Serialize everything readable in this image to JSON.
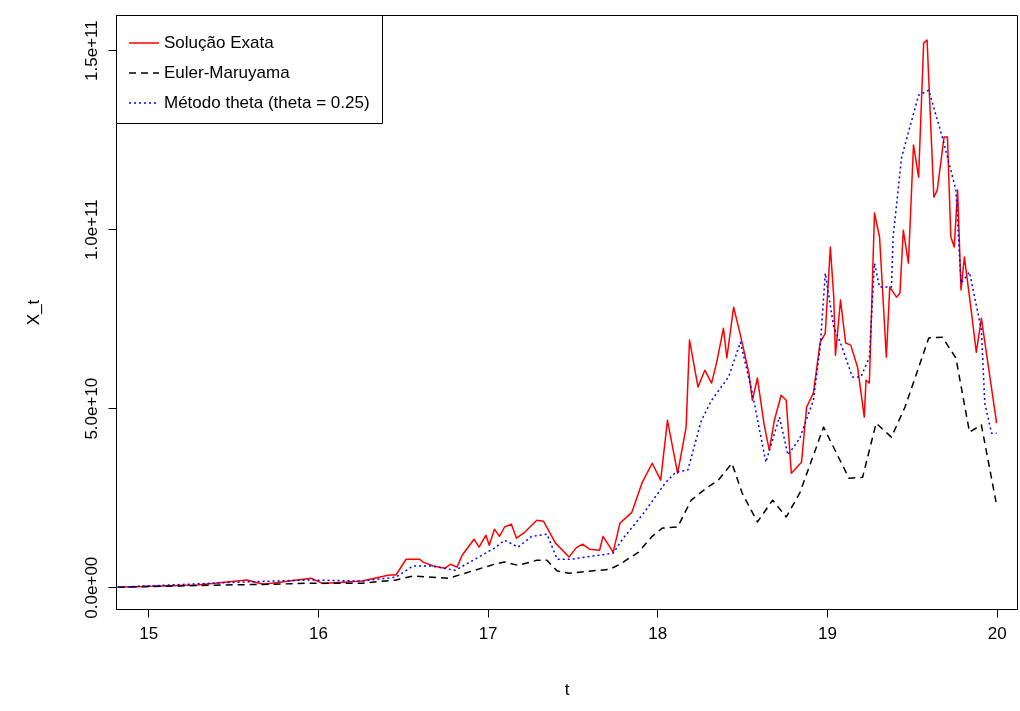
{
  "chart_data": {
    "type": "line",
    "xlabel": "t",
    "ylabel": "X_t",
    "xlim": [
      14.81,
      20.12
    ],
    "xticks": [
      15,
      16,
      17,
      18,
      19,
      20
    ],
    "ylim": [
      -6100000000.0,
      159800000000.0
    ],
    "yticks": [
      {
        "value": 0,
        "label": "0.0e+00"
      },
      {
        "value": 50000000000.0,
        "label": "5.0e+10"
      },
      {
        "value": 100000000000.0,
        "label": "1.0e+11"
      },
      {
        "value": 150000000000.0,
        "label": "1.5e+11"
      }
    ],
    "grid": false,
    "legend": "top left",
    "marker": "none",
    "series": [
      {
        "name": "Solução Exata",
        "color": "#ff0000",
        "line_style": "solid",
        "x": [
          14.82,
          15.29,
          15.58,
          15.68,
          15.96,
          16.03,
          16.26,
          16.42,
          16.46,
          16.52,
          16.6,
          16.62,
          16.68,
          16.75,
          16.78,
          16.82,
          16.85,
          16.92,
          16.95,
          16.99,
          17.01,
          17.04,
          17.07,
          17.1,
          17.14,
          17.17,
          17.22,
          17.29,
          17.33,
          17.4,
          17.48,
          17.52,
          17.56,
          17.6,
          17.66,
          17.68,
          17.74,
          17.78,
          17.85,
          17.91,
          17.97,
          18.02,
          18.06,
          18.12,
          18.17,
          18.19,
          18.24,
          18.28,
          18.32,
          18.35,
          18.39,
          18.41,
          18.45,
          18.49,
          18.54,
          18.56,
          18.59,
          18.63,
          18.66,
          18.69,
          18.73,
          18.76,
          18.79,
          18.85,
          18.88,
          18.92,
          18.96,
          18.99,
          19.02,
          19.04,
          19.05,
          19.08,
          19.11,
          19.14,
          19.18,
          19.22,
          19.23,
          19.25,
          19.28,
          19.31,
          19.35,
          19.37,
          19.41,
          19.43,
          19.45,
          19.48,
          19.51,
          19.54,
          19.57,
          19.59,
          19.63,
          19.65,
          19.69,
          19.71,
          19.73,
          19.75,
          19.77,
          19.79,
          19.81,
          19.85,
          19.88,
          19.91,
          19.92,
          20.0
        ],
        "values": [
          0,
          600000000.0,
          2000000000.0,
          800000000.0,
          2500000000.0,
          1000000000.0,
          1700000000.0,
          3400000000.0,
          3400000000.0,
          7800000000.0,
          7800000000.0,
          7000000000.0,
          5900000000.0,
          5300000000.0,
          6400000000.0,
          5600000000.0,
          8900000000.0,
          13400000000.0,
          11200000000.0,
          14500000000.0,
          11700000000.0,
          16200000000.0,
          14200000000.0,
          16800000000.0,
          17600000000.0,
          13700000000.0,
          15400000000.0,
          18700000000.0,
          18400000000.0,
          12300000000.0,
          8400000000.0,
          10900000000.0,
          12000000000.0,
          10600000000.0,
          10300000000.0,
          14200000000.0,
          9800000000.0,
          17900000000.0,
          20900000000.0,
          29100000000.0,
          34600000000.0,
          29900000000.0,
          46600000000.0,
          31800000000.0,
          44700000000.0,
          69000000000.0,
          55900000000.0,
          60600000000.0,
          57000000000.0,
          62800000000.0,
          72300000000.0,
          64000000000.0,
          78200000000.0,
          70400000000.0,
          59800000000.0,
          52200000000.0,
          58400000000.0,
          45300000000.0,
          38300000000.0,
          46600000000.0,
          53600000000.0,
          52200000000.0,
          31800000000.0,
          34900000000.0,
          50300000000.0,
          54200000000.0,
          68400000000.0,
          70900000000.0,
          95000000000.0,
          81000000000.0,
          64800000000.0,
          80200000000.0,
          68200000000.0,
          67600000000.0,
          61500000000.0,
          47500000000.0,
          57800000000.0,
          57000000000.0,
          104500000000.0,
          97800000000.0,
          64200000000.0,
          83800000000.0,
          81000000000.0,
          82100000000.0,
          99700000000.0,
          90500000000.0,
          123500000000.0,
          114500000000.0,
          152000000000.0,
          152800000000.0,
          108900000000.0,
          110900000000.0,
          125700000000.0,
          125700000000.0,
          97800000000.0,
          95000000000.0,
          110900000000.0,
          83000000000.0,
          92200000000.0,
          77400000000.0,
          65600000000.0,
          75100000000.0,
          71800000000.0,
          45800000000.0
        ]
      },
      {
        "name": "Euler-Maruyama",
        "color": "#000000",
        "line_style": "dashed",
        "x": [
          14.82,
          15.43,
          15.72,
          15.95,
          16.26,
          16.46,
          16.56,
          16.77,
          17.04,
          17.1,
          17.18,
          17.29,
          17.35,
          17.41,
          17.48,
          17.72,
          17.78,
          17.89,
          17.97,
          18.03,
          18.12,
          18.2,
          18.29,
          18.36,
          18.44,
          18.5,
          18.59,
          18.68,
          18.76,
          18.84,
          18.91,
          18.98,
          19.13,
          19.21,
          19.29,
          19.38,
          19.46,
          19.6,
          19.68,
          19.76,
          19.84,
          19.91,
          20.0
        ],
        "values": [
          0,
          600000000.0,
          800000000.0,
          1100000000.0,
          1100000000.0,
          2000000000.0,
          3100000000.0,
          2500000000.0,
          6400000000.0,
          7000000000.0,
          6100000000.0,
          7500000000.0,
          7500000000.0,
          4500000000.0,
          3900000000.0,
          5000000000.0,
          6400000000.0,
          9800000000.0,
          14200000000.0,
          16500000000.0,
          16800000000.0,
          24300000000.0,
          27700000000.0,
          29900000000.0,
          34600000000.0,
          26300000000.0,
          18200000000.0,
          24300000000.0,
          19600000000.0,
          26300000000.0,
          35500000000.0,
          44700000000.0,
          30400000000.0,
          30700000000.0,
          45800000000.0,
          41900000000.0,
          50300000000.0,
          69600000000.0,
          69800000000.0,
          64000000000.0,
          43300000000.0,
          45300000000.0,
          22900000000.0
        ]
      },
      {
        "name": "Método theta (theta = 0.25)",
        "color": "#0000ff",
        "line_style": "dotted",
        "x": [
          14.82,
          15.53,
          15.95,
          16.26,
          16.46,
          16.56,
          16.67,
          16.81,
          17.04,
          17.1,
          17.18,
          17.26,
          17.35,
          17.41,
          17.49,
          17.74,
          17.8,
          17.92,
          18.05,
          18.11,
          18.18,
          18.26,
          18.32,
          18.42,
          18.49,
          18.56,
          18.64,
          18.72,
          18.77,
          18.84,
          18.92,
          18.96,
          18.99,
          19.04,
          19.08,
          19.15,
          19.2,
          19.25,
          19.28,
          19.31,
          19.38,
          19.39,
          19.44,
          19.54,
          19.6,
          19.68,
          19.76,
          19.79,
          19.84,
          19.91,
          19.93,
          19.97,
          20.0
        ],
        "values": [
          0,
          1400000000.0,
          2000000000.0,
          1700000000.0,
          2800000000.0,
          5900000000.0,
          5900000000.0,
          4700000000.0,
          10900000000.0,
          13100000000.0,
          11200000000.0,
          14200000000.0,
          14800000000.0,
          7800000000.0,
          7800000000.0,
          9500000000.0,
          13700000000.0,
          20700000000.0,
          29300000000.0,
          32100000000.0,
          32700000000.0,
          46600000000.0,
          52200000000.0,
          58700000000.0,
          68400000000.0,
          54200000000.0,
          34900000000.0,
          47500000000.0,
          36900000000.0,
          41600000000.0,
          52200000000.0,
          67000000000.0,
          87700000000.0,
          72600000000.0,
          68200000000.0,
          58700000000.0,
          58700000000.0,
          64200000000.0,
          90500000000.0,
          83800000000.0,
          83800000000.0,
          97800000000.0,
          120100000000.0,
          137400000000.0,
          138800000000.0,
          125700000000.0,
          110900000000.0,
          84900000000.0,
          88000000000.0,
          71800000000.0,
          51400000000.0,
          43000000000.0,
          43000000000.0
        ]
      }
    ]
  }
}
